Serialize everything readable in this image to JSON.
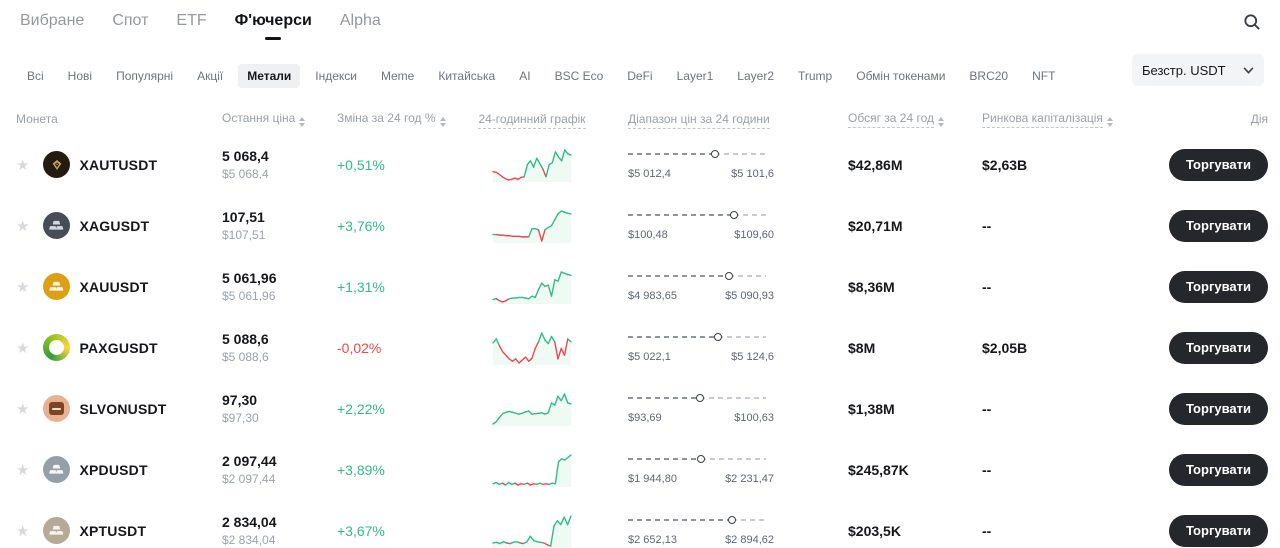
{
  "colors": {
    "green": "#2ebd85",
    "red": "#f0454c",
    "button_bg": "#24272c"
  },
  "nav": {
    "items": [
      {
        "label": "Вибране",
        "active": false
      },
      {
        "label": "Спот",
        "active": false
      },
      {
        "label": "ETF",
        "active": false
      },
      {
        "label": "Ф'ючерси",
        "active": true
      },
      {
        "label": "Alpha",
        "active": false
      }
    ],
    "search_icon": "search-icon"
  },
  "filters": {
    "tabs": [
      {
        "label": "Всі",
        "active": false
      },
      {
        "label": "Нові",
        "active": false
      },
      {
        "label": "Популярні",
        "active": false
      },
      {
        "label": "Акції",
        "active": false
      },
      {
        "label": "Метали",
        "active": true
      },
      {
        "label": "Індекси",
        "active": false
      },
      {
        "label": "Meme",
        "active": false
      },
      {
        "label": "Китайська",
        "active": false
      },
      {
        "label": "AI",
        "active": false
      },
      {
        "label": "BSC Eco",
        "active": false
      },
      {
        "label": "DeFi",
        "active": false
      },
      {
        "label": "Layer1",
        "active": false
      },
      {
        "label": "Layer2",
        "active": false
      },
      {
        "label": "Trump",
        "active": false
      },
      {
        "label": "Обмін токенами",
        "active": false
      },
      {
        "label": "BRC20",
        "active": false
      },
      {
        "label": "NFT",
        "active": false
      }
    ],
    "dropdown": {
      "label": "Безстр. USDT"
    }
  },
  "table": {
    "headers": {
      "coin": "Монета",
      "price": "Остання ціна",
      "change": "Зміна за 24 год %",
      "chart": "24-годинний графік",
      "range": "Діапазон цін за 24 години",
      "volume": "Обсяг за 24 год",
      "mcap": "Ринкова капіталізація",
      "action": "Дія"
    },
    "rows": [
      {
        "symbol": "XAUTUSDT",
        "price": "5 068,4",
        "price_usd": "$5 068,4",
        "change": "+0,51%",
        "direction": "up",
        "range_low": "$5 012,4",
        "range_high": "$5 101,6",
        "marker_pct": 63,
        "volume": "$42,86M",
        "mcap": "$2,63B",
        "action": "Торгувати",
        "icon": {
          "type": "diamond",
          "bg": "#241b10",
          "fg": "#c9a158"
        },
        "spark": [
          45,
          44,
          41,
          37,
          34,
          32,
          33,
          35,
          33,
          36,
          37,
          56,
          62,
          52,
          66,
          58,
          49,
          37,
          56,
          59,
          76,
          68,
          62,
          79,
          73,
          71
        ]
      },
      {
        "symbol": "XAGUSDT",
        "price": "107,51",
        "price_usd": "$107,51",
        "change": "+3,76%",
        "direction": "up",
        "range_low": "$100,48",
        "range_high": "$109,60",
        "marker_pct": 77,
        "volume": "$20,71M",
        "mcap": "--",
        "action": "Торгувати",
        "icon": {
          "type": "ingots",
          "bg": "#474d57",
          "fg": "#d4d9de"
        },
        "spark": [
          31,
          31,
          30,
          30,
          29,
          29,
          28,
          28,
          28,
          27,
          27,
          27,
          41,
          41,
          39,
          20,
          39,
          43,
          46,
          56,
          66,
          71,
          69,
          67,
          66
        ]
      },
      {
        "symbol": "XAUUSDT",
        "price": "5 061,96",
        "price_usd": "$5 061,96",
        "change": "+1,31%",
        "direction": "up",
        "range_low": "$4 983,65",
        "range_high": "$5 090,93",
        "marker_pct": 73,
        "volume": "$8,36M",
        "mcap": "--",
        "action": "Торгувати",
        "icon": {
          "type": "ingots",
          "bg": "#dda014",
          "fg": "#fdf6e3"
        },
        "spark": [
          31,
          32,
          29,
          27,
          29,
          32,
          33,
          33,
          34,
          34,
          33,
          32,
          36,
          34,
          46,
          56,
          51,
          53,
          36,
          61,
          59,
          73,
          71,
          69,
          68
        ]
      },
      {
        "symbol": "PAXGUSDT",
        "price": "5 088,6",
        "price_usd": "$5 088,6",
        "change": "-0,02%",
        "direction": "dn",
        "range_low": "$5 022,1",
        "range_high": "$5 124,6",
        "marker_pct": 65,
        "volume": "$8M",
        "mcap": "$2,05B",
        "action": "Торгувати",
        "icon": {
          "type": "ring",
          "bg": "#ffffff",
          "fg": "#3f9c35"
        },
        "spark": [
          55,
          62,
          50,
          40,
          34,
          28,
          24,
          28,
          21,
          26,
          31,
          24,
          29,
          46,
          57,
          72,
          60,
          54,
          66,
          57,
          28,
          46,
          34,
          62,
          57
        ]
      },
      {
        "symbol": "SLVONUSDT",
        "price": "97,30",
        "price_usd": "$97,30",
        "change": "+2,22%",
        "direction": "up",
        "range_low": "$93,69",
        "range_high": "$100,63",
        "marker_pct": 52,
        "volume": "$1,38M",
        "mcap": "--",
        "action": "Торгувати",
        "icon": {
          "type": "square",
          "bg": "#e9b193",
          "fg": "#7d4426"
        },
        "spark": [
          14,
          19,
          29,
          37,
          40,
          42,
          40,
          38,
          36,
          38,
          41,
          43,
          36,
          37,
          38,
          39,
          36,
          39,
          61,
          56,
          76,
          66,
          81,
          61,
          59
        ]
      },
      {
        "symbol": "XPDUSDT",
        "price": "2 097,44",
        "price_usd": "$2 097,44",
        "change": "+3,89%",
        "direction": "up",
        "range_low": "$1 944,80",
        "range_high": "$2 231,47",
        "marker_pct": 53,
        "volume": "$245,87K",
        "mcap": "--",
        "action": "Торгувати",
        "icon": {
          "type": "ingots",
          "bg": "#93a0a8",
          "fg": "#f4f7f9"
        },
        "spark": [
          20,
          22,
          19,
          21,
          18,
          22,
          19,
          21,
          18,
          20,
          19,
          21,
          18,
          20,
          19,
          21,
          19,
          20,
          19,
          21,
          20,
          55,
          60,
          58,
          62,
          66
        ]
      },
      {
        "symbol": "XPTUSDT",
        "price": "2 834,04",
        "price_usd": "$2 834,04",
        "change": "+3,67%",
        "direction": "up",
        "range_low": "$2 652,13",
        "range_high": "$2 894,62",
        "marker_pct": 75,
        "volume": "$203,5K",
        "mcap": "--",
        "action": "Торгувати",
        "icon": {
          "type": "ingots",
          "bg": "#b5a998",
          "fg": "#f7f3ec"
        },
        "spark": [
          20,
          21,
          19,
          22,
          20,
          19,
          21,
          22,
          20,
          19,
          22,
          31,
          24,
          22,
          21,
          20,
          17,
          15,
          48,
          56,
          50,
          62,
          50,
          64
        ]
      }
    ]
  }
}
